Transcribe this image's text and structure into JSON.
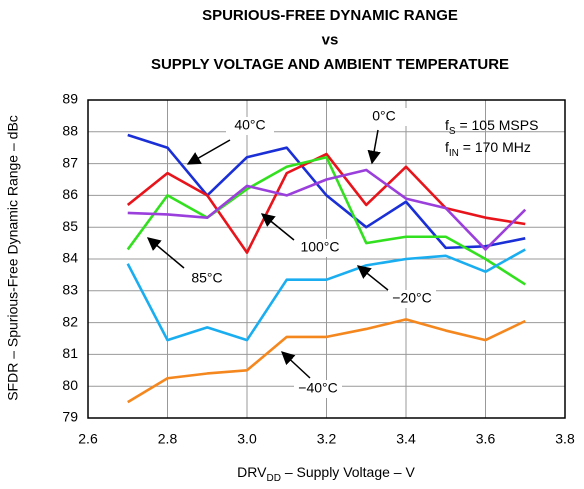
{
  "chart_data": {
    "type": "line",
    "title": [
      "SPURIOUS-FREE DYNAMIC RANGE",
      "vs",
      "SUPPLY VOLTAGE AND AMBIENT TEMPERATURE"
    ],
    "xlabel": [
      "DRV",
      "DD",
      " – Supply Voltage – V"
    ],
    "ylabel": "SFDR – Spurious-Free Dynamic Range – dBc",
    "notes": [
      [
        "f",
        "S",
        " = 105 MSPS"
      ],
      [
        "f",
        "IN",
        " = 170 MHz"
      ]
    ],
    "x": [
      2.7,
      2.8,
      2.9,
      3.0,
      3.1,
      3.2,
      3.3,
      3.4,
      3.5,
      3.6,
      3.7
    ],
    "series": [
      {
        "name": "40°C",
        "color": "#1a2fd6",
        "values": [
          87.9,
          87.5,
          86.0,
          87.2,
          87.5,
          86.0,
          85.0,
          85.8,
          84.35,
          84.4,
          84.65
        ]
      },
      {
        "name": "0°C",
        "color": "#e8141b",
        "values": [
          85.7,
          86.7,
          86.0,
          84.2,
          86.7,
          87.3,
          85.7,
          86.9,
          85.6,
          85.3,
          85.1
        ]
      },
      {
        "name": "100°C",
        "color": "#33e01f",
        "values": [
          84.3,
          86.0,
          85.3,
          86.2,
          86.9,
          87.2,
          84.5,
          84.7,
          84.7,
          84.0,
          83.2
        ]
      },
      {
        "name": "85°C",
        "color": "#9b3fdc",
        "values": [
          85.45,
          85.4,
          85.3,
          86.3,
          86.0,
          86.5,
          86.8,
          85.9,
          85.6,
          84.3,
          85.55
        ]
      },
      {
        "name": "−20°C",
        "color": "#1aaef0",
        "values": [
          83.85,
          81.45,
          81.85,
          81.45,
          83.35,
          83.35,
          83.8,
          84.0,
          84.1,
          83.6,
          84.3
        ]
      },
      {
        "name": "−40°C",
        "color": "#f5871f",
        "values": [
          79.5,
          80.25,
          80.4,
          80.5,
          81.55,
          81.55,
          81.8,
          82.1,
          81.75,
          81.45,
          82.05
        ]
      }
    ],
    "xlim": [
      2.6,
      3.8
    ],
    "xticks": [
      2.6,
      2.8,
      {
        "value": 3.0,
        "label": "3.0"
      },
      3.2,
      3.4,
      3.6,
      3.8
    ],
    "ylim": [
      79,
      89
    ],
    "yticks": [
      79,
      80,
      81,
      82,
      83,
      84,
      85,
      86,
      87,
      88,
      89
    ],
    "grid": true
  }
}
